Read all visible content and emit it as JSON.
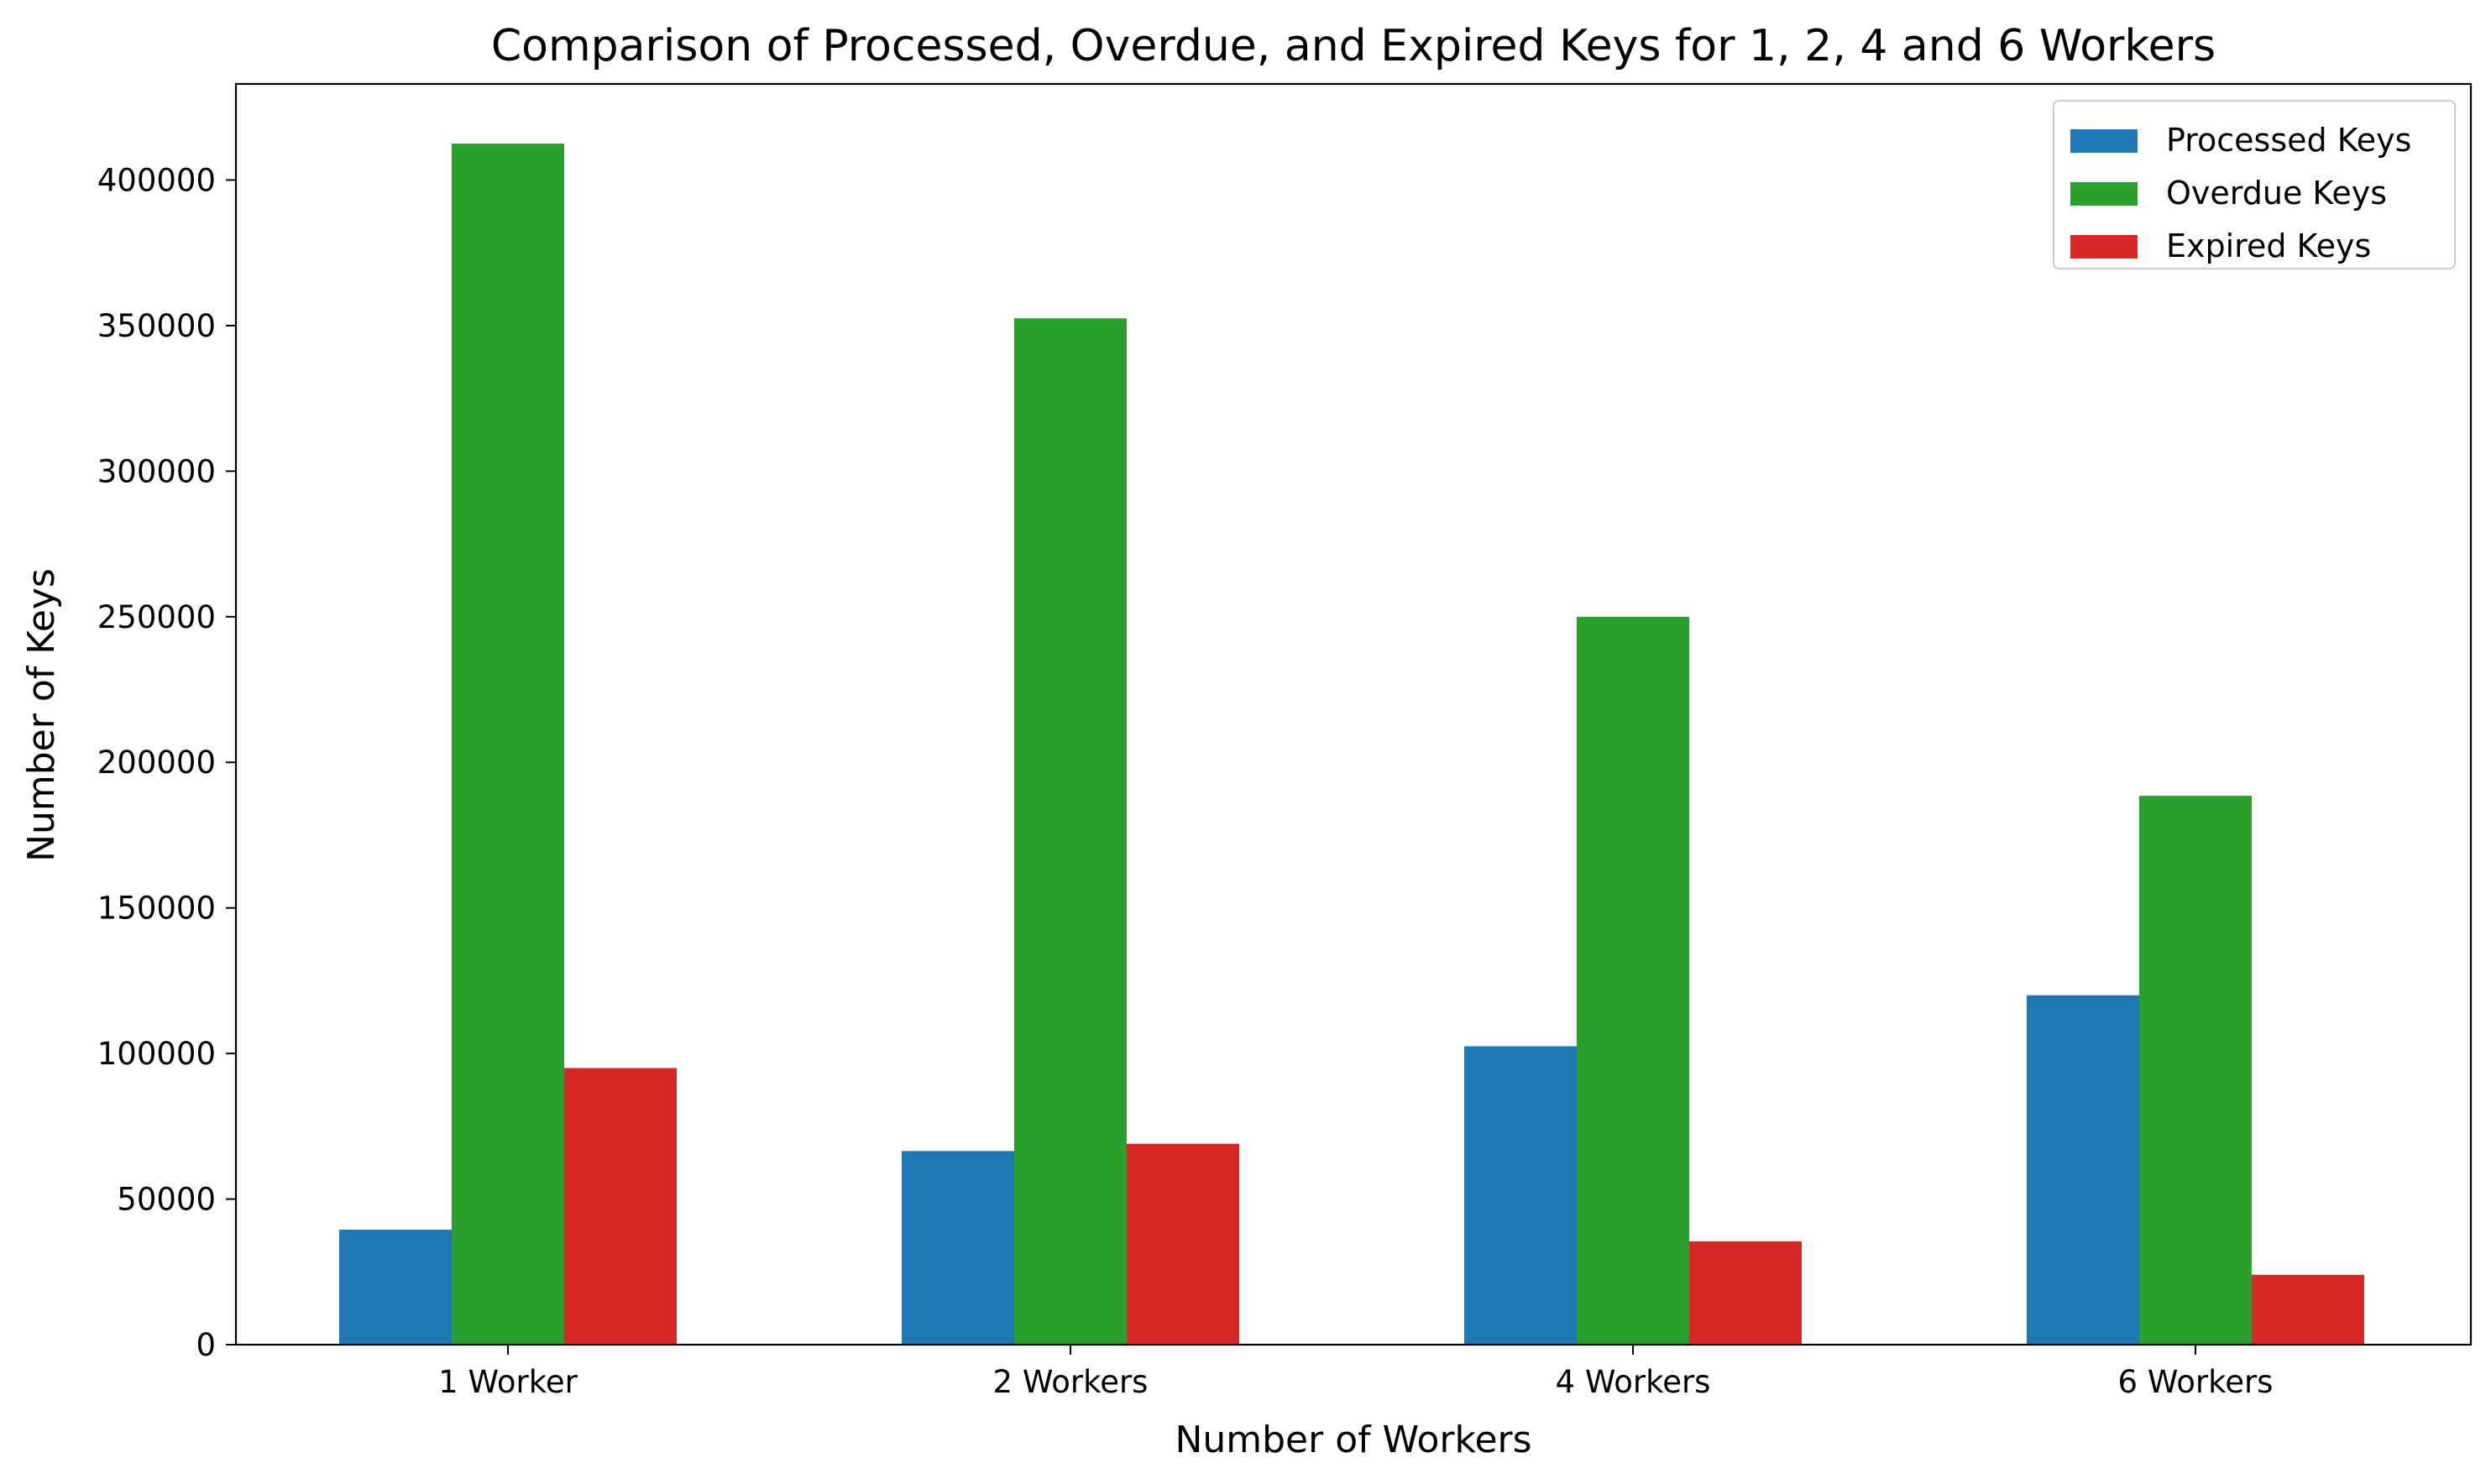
{
  "chart_data": {
    "type": "bar",
    "title": "Comparison of Processed, Overdue, and Expired Keys for 1, 2, 4 and 6 Workers",
    "xlabel": "Number of Workers",
    "ylabel": "Number of Keys",
    "categories": [
      "1 Worker",
      "2 Workers",
      "4 Workers",
      "6 Workers"
    ],
    "series": [
      {
        "name": "Processed Keys",
        "color": "#1f77b4",
        "values": [
          39500,
          66500,
          102500,
          120000
        ]
      },
      {
        "name": "Overdue Keys",
        "color": "#2ca02c",
        "values": [
          412500,
          352500,
          250000,
          188500
        ]
      },
      {
        "name": "Expired Keys",
        "color": "#d62728",
        "values": [
          95000,
          69000,
          35500,
          24000
        ]
      }
    ],
    "ylim": [
      0,
      433000
    ],
    "yticks": [
      0,
      50000,
      100000,
      150000,
      200000,
      250000,
      300000,
      350000,
      400000
    ],
    "ytick_labels": [
      "0",
      "50000",
      "100000",
      "150000",
      "200000",
      "250000",
      "300000",
      "350000",
      "400000"
    ],
    "grid": false,
    "legend_position": "top-right"
  }
}
